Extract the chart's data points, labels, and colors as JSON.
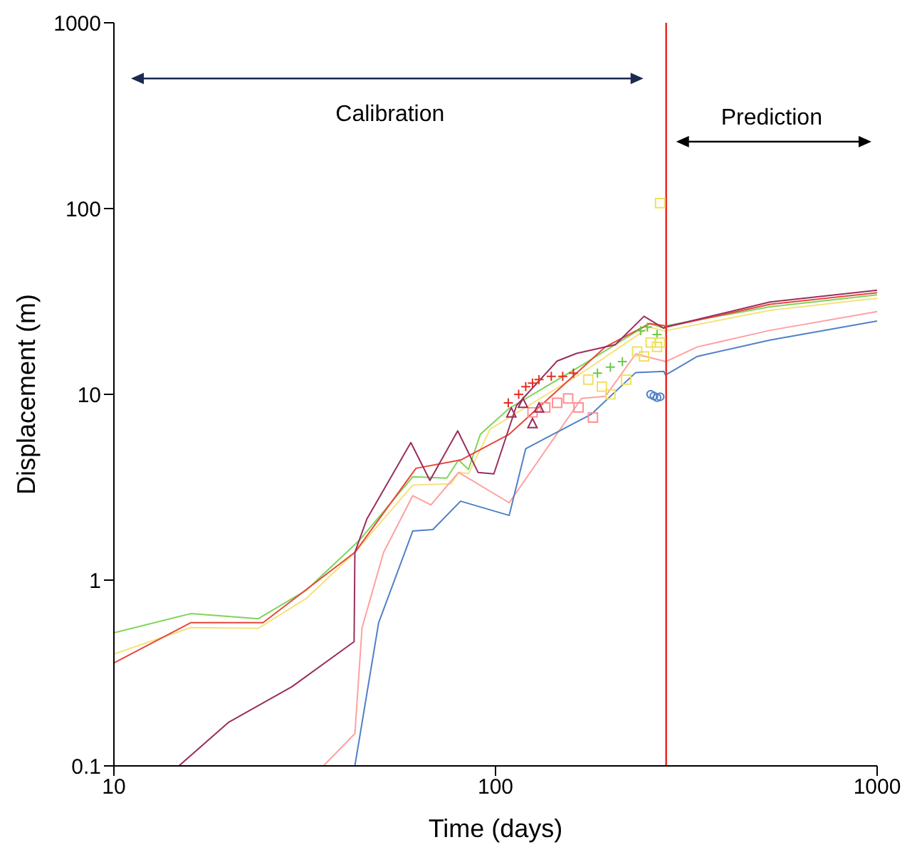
{
  "chart_data": {
    "type": "line",
    "xlabel": "Time (days)",
    "ylabel": "Displacement (m)",
    "log": "xy",
    "xlim": [
      10,
      1000
    ],
    "xticks": [
      10,
      100,
      1000
    ],
    "ylim": [
      0.1,
      1000
    ],
    "yticks": [
      0.1,
      1,
      10,
      100,
      1000
    ],
    "ref_lines": [
      {
        "axis": "x",
        "value": 280,
        "color": "#e8302a"
      }
    ],
    "annotations": [
      "Calibration",
      "Prediction"
    ],
    "series": [
      {
        "color": "#7fd45a",
        "x": [
          10,
          15.9,
          23.9,
          32,
          44,
          60.7,
          74.5,
          80,
          84.9,
          91.3,
          108.6,
          168,
          253,
          276,
          279,
          524,
          1000
        ],
        "values": [
          0.52,
          0.66,
          0.62,
          0.885,
          1.64,
          3.6,
          3.54,
          4.43,
          3.94,
          6.1,
          8.4,
          14.3,
          24.1,
          22.7,
          23.4,
          29.6,
          34.3
        ]
      },
      {
        "color": "#f5e27a",
        "x": [
          10,
          15.9,
          23.9,
          32,
          42.8,
          60.7,
          76.5,
          80,
          85,
          96.8,
          108.6,
          168,
          253,
          276,
          279,
          524,
          1000
        ],
        "values": [
          0.4,
          0.555,
          0.55,
          0.8,
          1.41,
          3.25,
          3.3,
          3.8,
          3.75,
          6.5,
          7.5,
          13,
          23,
          22,
          22,
          28.3,
          32.9
        ]
      },
      {
        "color": "#e8473a",
        "x": [
          10,
          15.9,
          24.6,
          42.8,
          61.9,
          81,
          108.6,
          194,
          253,
          276,
          279,
          524,
          1000
        ],
        "values": [
          0.358,
          0.59,
          0.59,
          1.41,
          4,
          4.43,
          6.1,
          18,
          24,
          23.5,
          23,
          30.5,
          35.2
        ]
      },
      {
        "color": "#ffa0a0",
        "x": [
          35.4,
          42.8,
          44.7,
          50.9,
          60.7,
          67.7,
          80,
          108.6,
          168,
          194,
          233,
          276,
          279,
          338,
          524,
          1000
        ],
        "values": [
          0.1,
          0.149,
          0.555,
          1.41,
          2.85,
          2.54,
          3.8,
          2.61,
          9.5,
          9.75,
          16.5,
          15.1,
          15,
          18,
          22.1,
          27.9
        ]
      },
      {
        "color": "#5080c8",
        "x": [
          42.8,
          49.4,
          60.7,
          68.5,
          81,
          108.6,
          120,
          178,
          233,
          276,
          279,
          338,
          524,
          1000
        ],
        "values": [
          0.1,
          0.59,
          1.84,
          1.87,
          2.66,
          2.23,
          5.1,
          7.8,
          13.1,
          13.3,
          12.7,
          16,
          19.6,
          24.8
        ]
      },
      {
        "color": "#9b2d5f",
        "x": [
          14.8,
          20,
          29.3,
          42.6,
          42.8,
          46,
          60,
          67.3,
          79.6,
          90,
          99,
          113.5,
          145,
          163,
          206,
          245,
          276,
          279,
          524,
          1000
        ],
        "values": [
          0.1,
          0.172,
          0.267,
          0.466,
          1.41,
          2.13,
          5.5,
          3.44,
          6.36,
          3.8,
          3.73,
          8.7,
          15.1,
          16.6,
          18.5,
          26.3,
          22.7,
          23,
          31.4,
          36.3
        ]
      },
      {
        "type": "scatter",
        "marker": "cross",
        "color": "#e03020",
        "x": [
          108,
          115,
          120,
          125,
          130,
          140,
          150,
          160
        ],
        "values": [
          9,
          10,
          11,
          11.5,
          12,
          12.5,
          12.5,
          13
        ]
      },
      {
        "type": "scatter",
        "marker": "square",
        "color": "#ff9090",
        "x": [
          125,
          135,
          145,
          155,
          165,
          180
        ],
        "values": [
          8,
          8.5,
          9,
          9.5,
          8.5,
          7.5
        ]
      },
      {
        "type": "scatter",
        "marker": "triangle",
        "color": "#9b2d5f",
        "x": [
          110,
          118,
          125,
          130
        ],
        "values": [
          8,
          9,
          7,
          8.5
        ]
      },
      {
        "type": "scatter",
        "marker": "cross",
        "color": "#6cc84a",
        "x": [
          185,
          200,
          215,
          240,
          250,
          265
        ],
        "values": [
          13,
          14,
          15,
          22,
          23,
          21
        ]
      },
      {
        "type": "scatter",
        "marker": "square",
        "color": "#f0e060",
        "x": [
          175,
          190,
          200,
          220,
          235,
          245,
          255,
          265,
          270,
          270
        ],
        "values": [
          12,
          11,
          10,
          12,
          17,
          16,
          19,
          18,
          19,
          107
        ]
      },
      {
        "type": "scatter",
        "marker": "circle",
        "color": "#5080c8",
        "x": [
          255,
          260,
          265,
          270
        ],
        "values": [
          10,
          9.8,
          9.6,
          9.7
        ]
      }
    ]
  }
}
